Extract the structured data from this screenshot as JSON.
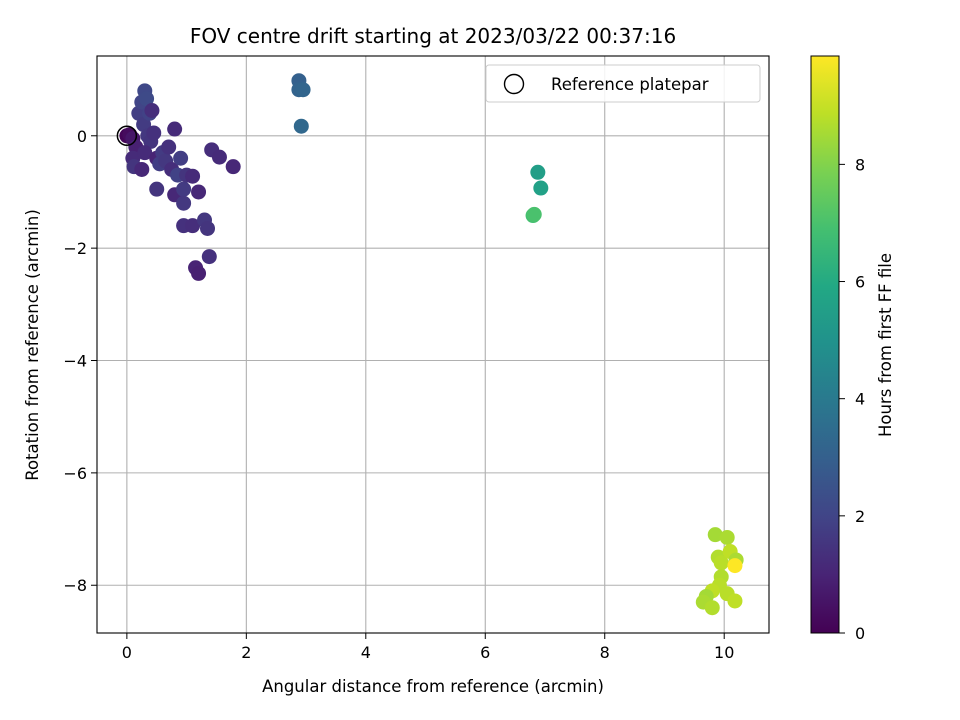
{
  "chart_data": {
    "type": "scatter",
    "title": "FOV centre drift starting at 2023/03/22 00:37:16",
    "xlabel": "Angular distance from reference (arcmin)",
    "ylabel": "Rotation from reference (arcmin)",
    "xlim": [
      -0.5,
      10.75
    ],
    "ylim": [
      -8.85,
      1.42
    ],
    "xticks": [
      0,
      2,
      4,
      6,
      8,
      10
    ],
    "yticks": [
      0,
      -2,
      -4,
      -6,
      -8
    ],
    "grid": true,
    "legend": {
      "position": "top-right",
      "entries": [
        {
          "label": "Reference platepar",
          "marker": "open-circle"
        }
      ]
    },
    "reference_point": {
      "x": 0,
      "y": 0
    },
    "colorbar": {
      "label": "Hours from first FF file",
      "colormap": "viridis",
      "range": [
        0,
        9.85
      ],
      "ticks": [
        0,
        2,
        4,
        6,
        8
      ]
    },
    "points": [
      {
        "x": 0.0,
        "y": 0.0,
        "t": 0.1
      },
      {
        "x": 0.05,
        "y": 0.02,
        "t": 0.3
      },
      {
        "x": 0.1,
        "y": -0.05,
        "t": 0.6
      },
      {
        "x": 0.15,
        "y": -0.2,
        "t": 0.9
      },
      {
        "x": 0.1,
        "y": -0.4,
        "t": 1.2
      },
      {
        "x": 0.12,
        "y": -0.55,
        "t": 1.5
      },
      {
        "x": 0.2,
        "y": 0.4,
        "t": 1.8
      },
      {
        "x": 0.25,
        "y": 0.6,
        "t": 2.0
      },
      {
        "x": 0.3,
        "y": 0.8,
        "t": 2.1
      },
      {
        "x": 0.33,
        "y": 0.66,
        "t": 2.2
      },
      {
        "x": 0.28,
        "y": 0.2,
        "t": 1.7
      },
      {
        "x": 0.35,
        "y": 0.0,
        "t": 1.6
      },
      {
        "x": 0.4,
        "y": -0.1,
        "t": 1.5
      },
      {
        "x": 0.45,
        "y": 0.05,
        "t": 1.4
      },
      {
        "x": 0.38,
        "y": 0.4,
        "t": 1.9
      },
      {
        "x": 0.42,
        "y": 0.45,
        "t": 1.3
      },
      {
        "x": 0.3,
        "y": -0.3,
        "t": 1.2
      },
      {
        "x": 0.25,
        "y": -0.6,
        "t": 1.1
      },
      {
        "x": 0.5,
        "y": -0.4,
        "t": 1.0
      },
      {
        "x": 0.55,
        "y": -0.5,
        "t": 1.8
      },
      {
        "x": 0.6,
        "y": -0.3,
        "t": 1.7
      },
      {
        "x": 0.65,
        "y": -0.45,
        "t": 1.6
      },
      {
        "x": 0.5,
        "y": -0.95,
        "t": 1.5
      },
      {
        "x": 0.7,
        "y": -0.2,
        "t": 1.4
      },
      {
        "x": 0.75,
        "y": -0.6,
        "t": 1.3
      },
      {
        "x": 0.8,
        "y": 0.12,
        "t": 1.2
      },
      {
        "x": 0.8,
        "y": -1.05,
        "t": 1.1
      },
      {
        "x": 0.85,
        "y": -0.7,
        "t": 1.9
      },
      {
        "x": 0.9,
        "y": -0.4,
        "t": 1.8
      },
      {
        "x": 0.95,
        "y": -0.95,
        "t": 1.7
      },
      {
        "x": 0.95,
        "y": -1.2,
        "t": 1.6
      },
      {
        "x": 1.0,
        "y": -0.7,
        "t": 1.5
      },
      {
        "x": 0.95,
        "y": -1.6,
        "t": 1.4
      },
      {
        "x": 1.1,
        "y": -1.6,
        "t": 1.3
      },
      {
        "x": 1.1,
        "y": -0.72,
        "t": 1.2
      },
      {
        "x": 1.2,
        "y": -1.0,
        "t": 1.1
      },
      {
        "x": 1.15,
        "y": -2.35,
        "t": 1.0
      },
      {
        "x": 1.2,
        "y": -2.45,
        "t": 0.9
      },
      {
        "x": 1.3,
        "y": -1.5,
        "t": 1.6
      },
      {
        "x": 1.35,
        "y": -1.65,
        "t": 1.5
      },
      {
        "x": 1.38,
        "y": -2.15,
        "t": 1.4
      },
      {
        "x": 1.42,
        "y": -0.25,
        "t": 1.3
      },
      {
        "x": 1.55,
        "y": -0.38,
        "t": 1.2
      },
      {
        "x": 1.78,
        "y": -0.55,
        "t": 1.1
      },
      {
        "x": 2.88,
        "y": 0.98,
        "t": 3.0
      },
      {
        "x": 2.88,
        "y": 0.82,
        "t": 3.1
      },
      {
        "x": 2.95,
        "y": 0.82,
        "t": 3.2
      },
      {
        "x": 2.92,
        "y": 0.17,
        "t": 3.3
      },
      {
        "x": 6.88,
        "y": -0.65,
        "t": 5.5
      },
      {
        "x": 6.93,
        "y": -0.93,
        "t": 5.6
      },
      {
        "x": 6.8,
        "y": -1.42,
        "t": 6.9
      },
      {
        "x": 6.82,
        "y": -1.4,
        "t": 7.0
      },
      {
        "x": 9.85,
        "y": -7.1,
        "t": 8.5
      },
      {
        "x": 10.05,
        "y": -7.15,
        "t": 8.6
      },
      {
        "x": 9.9,
        "y": -7.5,
        "t": 8.7
      },
      {
        "x": 9.95,
        "y": -7.6,
        "t": 8.8
      },
      {
        "x": 10.1,
        "y": -7.4,
        "t": 8.9
      },
      {
        "x": 10.2,
        "y": -7.55,
        "t": 8.6
      },
      {
        "x": 10.18,
        "y": -7.65,
        "t": 9.85
      },
      {
        "x": 9.95,
        "y": -7.85,
        "t": 8.7
      },
      {
        "x": 9.92,
        "y": -8.0,
        "t": 8.8
      },
      {
        "x": 9.8,
        "y": -8.1,
        "t": 8.9
      },
      {
        "x": 9.7,
        "y": -8.2,
        "t": 8.5
      },
      {
        "x": 9.65,
        "y": -8.3,
        "t": 8.6
      },
      {
        "x": 9.8,
        "y": -8.4,
        "t": 8.7
      },
      {
        "x": 10.05,
        "y": -8.15,
        "t": 8.8
      },
      {
        "x": 10.18,
        "y": -8.28,
        "t": 8.9
      }
    ]
  }
}
